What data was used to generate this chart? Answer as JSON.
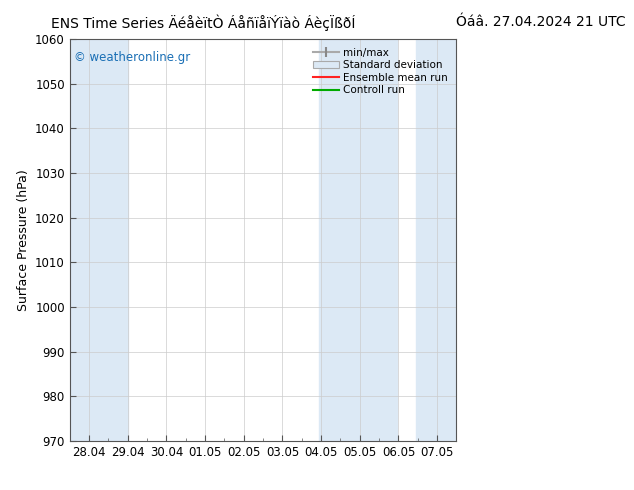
{
  "title_left": "ENS Time Series ÄéåèïtÒ ÁåñïåïÝïàò ÁèçÏßðÍ",
  "title_right": "Óáâ. 27.04.2024 21 UTC",
  "ylabel": "Surface Pressure (hPa)",
  "ylim": [
    970,
    1060
  ],
  "yticks": [
    970,
    980,
    990,
    1000,
    1010,
    1020,
    1030,
    1040,
    1050,
    1060
  ],
  "x_labels": [
    "28.04",
    "29.04",
    "30.04",
    "01.05",
    "02.05",
    "03.05",
    "04.05",
    "05.05",
    "06.05",
    "07.05"
  ],
  "shaded_color": "#dce9f5",
  "watermark_text": "© weatheronline.gr",
  "watermark_color": "#1a6fb5",
  "legend_entries": [
    "min/max",
    "Standard deviation",
    "Ensemble mean run",
    "Controll run"
  ],
  "background_color": "#ffffff",
  "title_fontsize": 10,
  "tick_fontsize": 8.5,
  "ylabel_fontsize": 9
}
